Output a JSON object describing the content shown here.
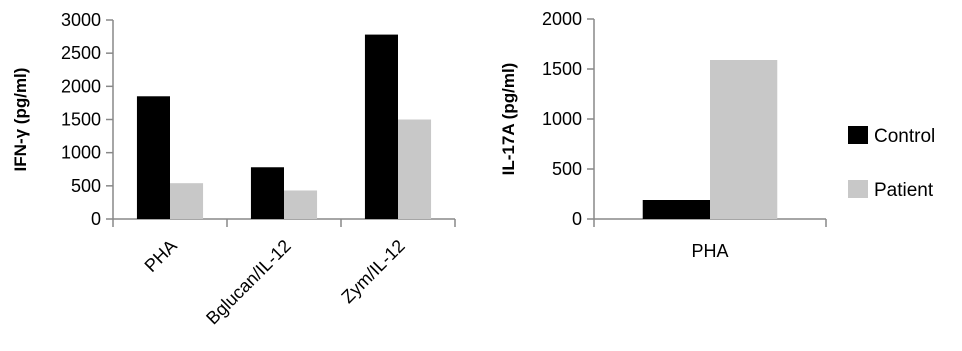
{
  "chart_data": [
    {
      "type": "bar",
      "categories": [
        "PHA",
        "Bglucan/IL-12",
        "Zym/IL-12"
      ],
      "series": [
        {
          "name": "Control",
          "values": [
            1850,
            780,
            2780
          ],
          "color": "#000000"
        },
        {
          "name": "Patient",
          "values": [
            540,
            430,
            1500
          ],
          "color": "#c8c8c8"
        }
      ],
      "ylabel": "IFN-γ (pg/ml)",
      "xlabel": "",
      "ylim": [
        0,
        3000
      ],
      "yticks": [
        "0",
        "500",
        "1000",
        "1500",
        "2000",
        "2500",
        "3000"
      ],
      "grid": false
    },
    {
      "type": "bar",
      "categories": [
        "PHA"
      ],
      "series": [
        {
          "name": "Control",
          "values": [
            190
          ],
          "color": "#000000"
        },
        {
          "name": "Patient",
          "values": [
            1590
          ],
          "color": "#c8c8c8"
        }
      ],
      "ylabel": "IL-17A (pg/ml)",
      "xlabel": "",
      "ylim": [
        0,
        2000
      ],
      "yticks": [
        "0",
        "500",
        "1000",
        "1500",
        "2000"
      ],
      "grid": false
    }
  ],
  "legend": {
    "placement": "right",
    "items": [
      {
        "label": "Control",
        "color": "#000000"
      },
      {
        "label": "Patient",
        "color": "#c8c8c8"
      }
    ]
  }
}
